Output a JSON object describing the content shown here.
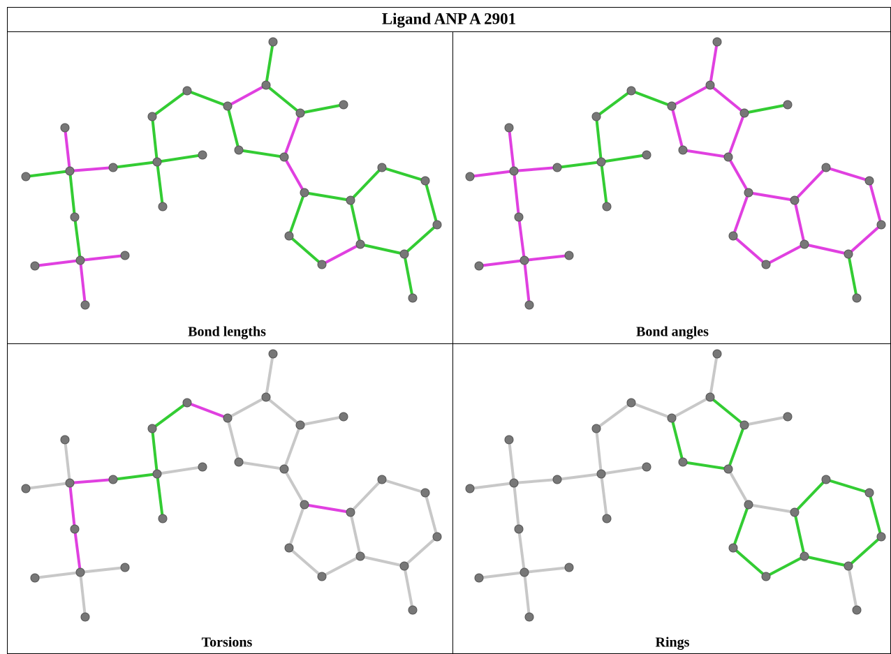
{
  "title": "Ligand ANP A 2901",
  "panels": [
    {
      "caption": "Bond lengths"
    },
    {
      "caption": "Bond angles"
    },
    {
      "caption": "Torsions"
    },
    {
      "caption": "Rings"
    }
  ]
}
